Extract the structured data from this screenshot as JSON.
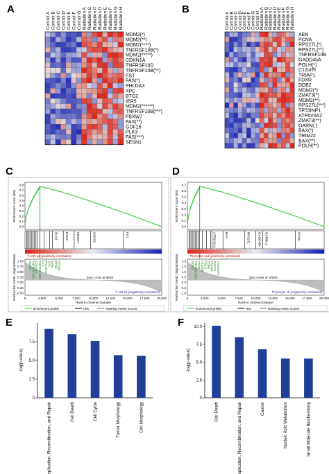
{
  "panels": {
    "A": "A",
    "B": "B",
    "C": "C",
    "D": "D",
    "E": "E",
    "F": "F"
  },
  "heatmapA": {
    "columns": [
      "Control A",
      "Control B",
      "Control C",
      "Control D",
      "Control E",
      "Control F",
      "Control G",
      "Radiation A",
      "Radiation B",
      "Radiation C",
      "Radiation D",
      "Radiation E",
      "Radiation F",
      "Radiation G",
      "Radiation H"
    ],
    "genes": [
      "MDM2(*)",
      "MDM2(**)",
      "MDM2(****)",
      "TNFRSF10B(*)",
      "MDM2(*****)",
      "CDKN1A",
      "TNFRSF10D",
      "TNFRSF10B(**)",
      "FST",
      "FAS(*)",
      "PHLDA3",
      "XPC",
      "BTG2",
      "IER5",
      "MDM2(******)",
      "TNFRSF10B(***)",
      "FBXW7",
      "FAS(**)",
      "GDF15",
      "PLK3",
      "FAS(***)",
      "SESN1"
    ]
  },
  "heatmapB": {
    "columns": [
      "Control A",
      "Control B",
      "Control C",
      "Control D",
      "Control E",
      "Control F",
      "Control G",
      "Control H",
      "Radiation A",
      "Radiation B",
      "Radiation C",
      "Radiation D",
      "Radiation E",
      "Radiation F",
      "Radiation G",
      "Radiation H"
    ],
    "genes": [
      "AEN",
      "PCNA",
      "RPS27L(*)",
      "RPS27L(**)",
      "TNFRSF10B",
      "GADD45A",
      "POLH(*)",
      "C12orf5",
      "TRIAP1",
      "FDXR",
      "DDB2",
      "MDM2(*)",
      "ZMAT3(*)",
      "MDM2(**)",
      "RPS27L(***)",
      "TP53INP1",
      "ATP6V0A2",
      "ZMAT3(**)",
      "GARNL1",
      "BAX(*)",
      "TRIM22",
      "BAX(**)",
      "POLH(**)"
    ]
  },
  "gseaC": {
    "es_label": "Enrichment score (ES)",
    "es_ticks": [
      "0.8",
      "0.7",
      "0.6",
      "0.5",
      "0.4",
      "0.3",
      "0.2",
      "0.1",
      "0.0"
    ],
    "hit_labels": [
      "PLK3",
      "BTG2",
      "FBXW7",
      "GDF15",
      "FST"
    ],
    "pos_label": "T-cell rad (positively correlated)",
    "neg_label": "T-cell ctl (negatively correlated)",
    "zero_cross": "Zero cross at 9528",
    "metric_label": "Ranked list metric (Signal2Noise)",
    "metric_ticks": [
      "1.00",
      "0.75",
      "0.50",
      "0.25",
      "0.00",
      "-0.25",
      "-0.50"
    ],
    "lead_genes": [
      "MDM2",
      "TNFRSF10B",
      "CDKN1A",
      "TNFRSF10D",
      "FAS",
      "PHLDA3",
      "XPC",
      "IER5",
      "BTG2",
      "SESN1"
    ],
    "x_ticks": [
      "0",
      "2,500",
      "5,000",
      "7,500",
      "10,000",
      "12,500",
      "15,000",
      "17,500",
      "20,000"
    ],
    "xlabel": "Rank in Ordered Dataset",
    "legend": [
      "Enrichment profile",
      "Hits",
      "Ranking metric scores"
    ]
  },
  "gseaD": {
    "es_label": "Enrichment score (ES)",
    "es_ticks": [
      "0.7",
      "0.6",
      "0.5",
      "0.4",
      "0.3",
      "0.2",
      "0.1",
      "0.0"
    ],
    "hit_labels": [
      "ATP6V0A2",
      "BAX",
      "RPS27L",
      "GADD45A",
      "GARNL1",
      "PCNA"
    ],
    "pos_label": "Thyrocyte rad (positively correlated)",
    "neg_label": "Thyrocyte ctl (negatively correlated)",
    "zero_cross": "Zero cross at 10023",
    "metric_label": "Ranked list metric (Signal2Noise)",
    "metric_ticks": [
      "2.0",
      "1.5",
      "1.0",
      "0.5",
      "0.0",
      "-0.5",
      "-1.0"
    ],
    "lead_genes": [
      "MDM2",
      "TNFRSF10B",
      "FDXR",
      "C12orf5",
      "POLH",
      "DDB2",
      "TRIAP1",
      "ZMAT3",
      "TP53INP1"
    ],
    "x_ticks": [
      "0",
      "2,500",
      "5,000",
      "7,500",
      "10,000",
      "12,500",
      "15,000",
      "17,500",
      "20,000"
    ],
    "xlabel": "Rank in Ordered Dataset",
    "legend": [
      "Enrichment profile",
      "Hits",
      "Ranking metric scores"
    ]
  },
  "chart_data": [
    {
      "type": "bar",
      "panel": "E",
      "categories": [
        "DNA Replication, Recombination, and Repair",
        "Cell Death",
        "Cell Cycle",
        "Tumor Morphology",
        "Cell Morphology"
      ],
      "values": [
        9.2,
        8.5,
        7.6,
        5.7,
        5.6
      ],
      "ylabel": "-log(p-value)",
      "ylim": [
        0,
        10
      ],
      "yticks": [
        "0",
        "2.5",
        "5.0",
        "7.5"
      ],
      "bar_color": "#1f3f99"
    },
    {
      "type": "bar",
      "panel": "F",
      "categories": [
        "Cell Death",
        "DNA Replication, Recombination, and Repair",
        "Cancer",
        "Nucleic Acid Metabolism",
        "Small Molecule Biochemistry"
      ],
      "values": [
        10.1,
        8.5,
        6.8,
        5.5,
        5.5
      ],
      "ylabel": "-log(p-value)",
      "ylim": [
        0,
        10.5
      ],
      "yticks": [
        "0",
        "2.5",
        "5.0",
        "7.5",
        "10.0"
      ],
      "bar_color": "#1f3f99"
    }
  ]
}
